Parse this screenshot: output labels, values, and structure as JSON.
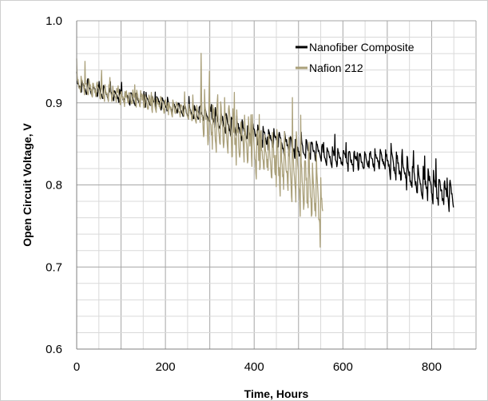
{
  "chart_data": {
    "type": "line",
    "title": "",
    "xlabel": "Time, Hours",
    "ylabel": "Open Circuit Voltage, V",
    "xlim": [
      0,
      900
    ],
    "ylim": [
      0.6,
      1.0
    ],
    "xticks": [
      "0",
      "200",
      "400",
      "600",
      "800"
    ],
    "yticks": [
      "0.6",
      "0.7",
      "0.8",
      "0.9",
      "1.0"
    ],
    "grid": true,
    "legend": "top-right",
    "series": [
      {
        "name": "Nanofiber Composite",
        "color": "#000000",
        "x": [
          0,
          20,
          40,
          60,
          80,
          100,
          120,
          140,
          160,
          180,
          200,
          220,
          240,
          260,
          280,
          300,
          320,
          340,
          360,
          380,
          400,
          420,
          440,
          460,
          480,
          500,
          520,
          540,
          560,
          580,
          600,
          620,
          640,
          660,
          680,
          700,
          720,
          740,
          760,
          780,
          800,
          820,
          840,
          850
        ],
        "values": [
          0.92,
          0.918,
          0.915,
          0.913,
          0.91,
          0.909,
          0.907,
          0.905,
          0.903,
          0.9,
          0.898,
          0.895,
          0.892,
          0.889,
          0.886,
          0.883,
          0.879,
          0.875,
          0.871,
          0.866,
          0.862,
          0.858,
          0.855,
          0.852,
          0.849,
          0.846,
          0.843,
          0.84,
          0.837,
          0.834,
          0.832,
          0.831,
          0.83,
          0.83,
          0.83,
          0.828,
          0.823,
          0.817,
          0.81,
          0.803,
          0.797,
          0.792,
          0.788,
          0.785
        ]
      },
      {
        "name": "Nafion 212",
        "color": "#aaa07a",
        "x": [
          0,
          20,
          40,
          60,
          80,
          100,
          120,
          140,
          160,
          180,
          200,
          220,
          240,
          260,
          280,
          300,
          320,
          340,
          360,
          380,
          400,
          420,
          440,
          460,
          480,
          500,
          520,
          540,
          555
        ],
        "values": [
          0.925,
          0.92,
          0.916,
          0.913,
          0.91,
          0.908,
          0.906,
          0.904,
          0.901,
          0.899,
          0.896,
          0.893,
          0.89,
          0.887,
          0.884,
          0.879,
          0.874,
          0.868,
          0.861,
          0.853,
          0.846,
          0.839,
          0.832,
          0.826,
          0.819,
          0.811,
          0.801,
          0.787,
          0.765
        ]
      }
    ]
  }
}
